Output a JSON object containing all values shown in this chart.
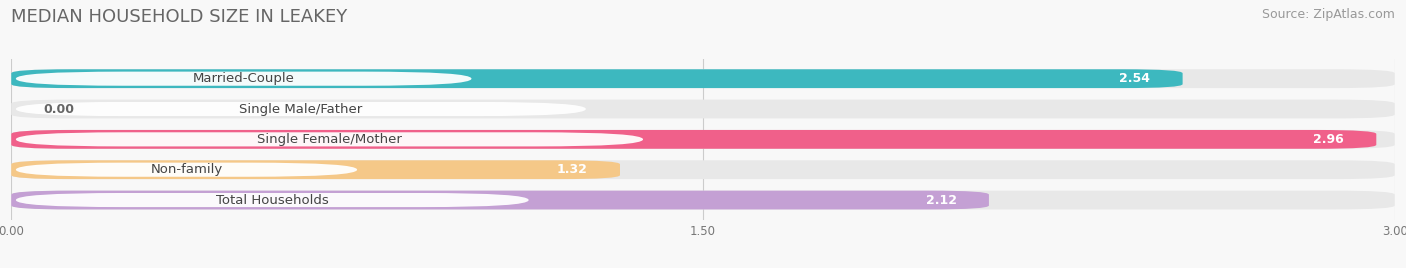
{
  "title": "MEDIAN HOUSEHOLD SIZE IN LEAKEY",
  "source": "Source: ZipAtlas.com",
  "categories": [
    "Married-Couple",
    "Single Male/Father",
    "Single Female/Mother",
    "Non-family",
    "Total Households"
  ],
  "values": [
    2.54,
    0.0,
    2.96,
    1.32,
    2.12
  ],
  "bar_colors": [
    "#3db8bf",
    "#a8b8e8",
    "#f0608a",
    "#f5c888",
    "#c4a0d4"
  ],
  "track_color": "#e8e8e8",
  "label_bg_color": "#ffffff",
  "xlim": [
    0,
    3.0
  ],
  "xticks": [
    0.0,
    1.5,
    3.0
  ],
  "xtick_labels": [
    "0.00",
    "1.50",
    "3.00"
  ],
  "title_fontsize": 13,
  "source_fontsize": 9,
  "label_fontsize": 9.5,
  "value_fontsize": 9,
  "bar_height": 0.62,
  "background_color": "#f8f8f8",
  "n_bars": 5
}
